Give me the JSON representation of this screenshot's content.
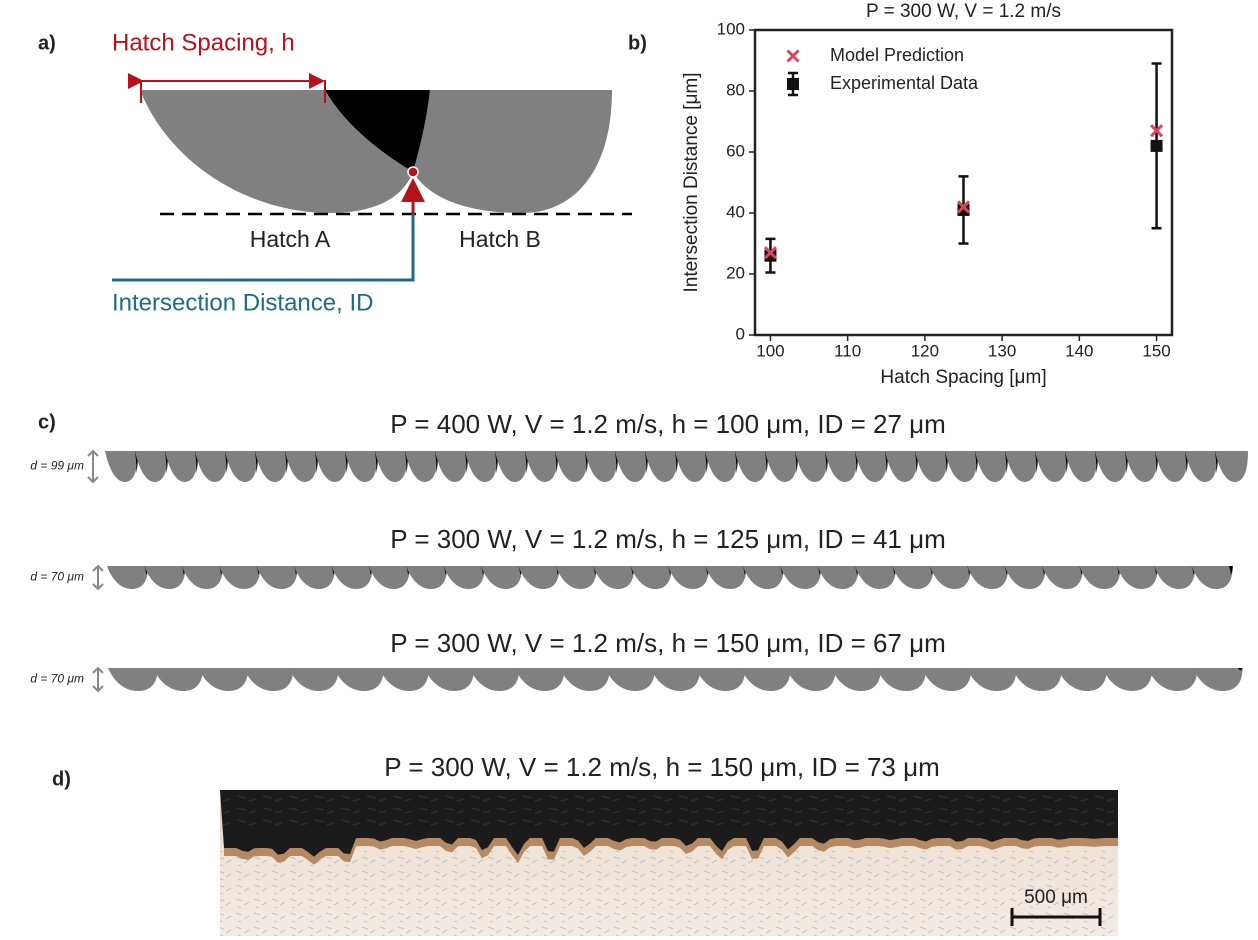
{
  "panel_a": {
    "label": "a)",
    "hatch_spacing_label": "Hatch Spacing, h",
    "hatch_a": "Hatch A",
    "hatch_b": "Hatch B",
    "intersection_label": "Intersection Distance, ID"
  },
  "chart_data": {
    "type": "scatter",
    "panel_label": "b)",
    "title": "P = 300 W, V = 1.2 m/s",
    "x_label": "Hatch Spacing [μm]",
    "y_label": "Intersection Distance [μm]",
    "x": [
      100,
      125,
      150
    ],
    "series": [
      {
        "name": "Model Prediction",
        "color": "#d9475c",
        "marker": "x",
        "values": [
          27,
          42,
          67
        ]
      },
      {
        "name": "Experimental Data",
        "color": "#111111",
        "marker": "square",
        "values": [
          26,
          41,
          62
        ],
        "errors": [
          5.5,
          11,
          27
        ]
      }
    ],
    "xlim": [
      98,
      152
    ],
    "ylim": [
      0,
      100
    ],
    "xticks": [
      100,
      110,
      120,
      130,
      140,
      150
    ],
    "yticks": [
      0,
      20,
      40,
      60,
      80,
      100
    ],
    "legend": "upper left"
  },
  "panel_c": {
    "label": "c)",
    "rows": [
      {
        "title": "P = 400 W, V = 1.2 m/s, h = 100 μm, ID = 27 μm",
        "depth_label": "d = 99 μm"
      },
      {
        "title": "P = 300 W, V = 1.2 m/s, h = 125 μm, ID = 41 μm",
        "depth_label": "d = 70 μm"
      },
      {
        "title": "P = 300 W, V = 1.2 m/s, h = 150 μm, ID = 67 μm",
        "depth_label": "d = 70 μm"
      }
    ]
  },
  "panel_d": {
    "label": "d)",
    "title": "P = 300 W, V = 1.2 m/s, h = 150 μm, ID = 73 μm",
    "scale_bar": "500 μm"
  }
}
